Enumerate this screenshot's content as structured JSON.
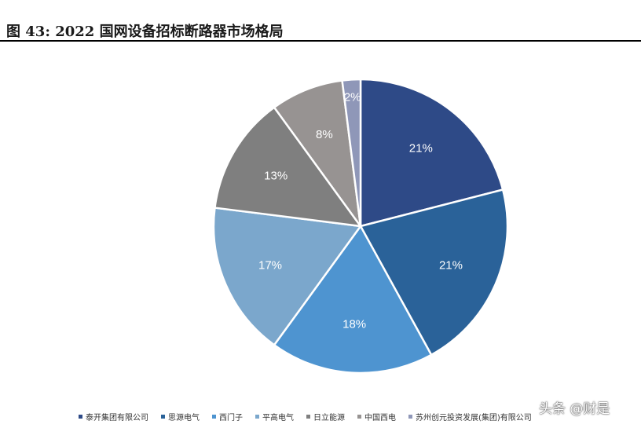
{
  "figure": {
    "title": "图 43:  2022 国网设备招标断路器市场格局"
  },
  "chart_data": {
    "type": "pie",
    "title": "2022 国网设备招标断路器市场格局",
    "slices": [
      {
        "label": "泰开集团有限公司",
        "value": 21,
        "display": "21%",
        "color": "#2e4a87"
      },
      {
        "label": "思源电气",
        "value": 21,
        "display": "21%",
        "color": "#2a6299"
      },
      {
        "label": "西门子",
        "value": 18,
        "display": "18%",
        "color": "#4e94d0"
      },
      {
        "label": "平高电气",
        "value": 17,
        "display": "17%",
        "color": "#7ba7cc"
      },
      {
        "label": "日立能源",
        "value": 13,
        "display": "13%",
        "color": "#7f7f7f"
      },
      {
        "label": "中国西电",
        "value": 8,
        "display": "8%",
        "color": "#979392"
      },
      {
        "label": "苏州创元投资发展(集团)有限公司",
        "value": 2,
        "display": "2%",
        "color": "#8f97b8"
      }
    ],
    "legend_position": "bottom"
  },
  "watermark": "头条 @财是"
}
